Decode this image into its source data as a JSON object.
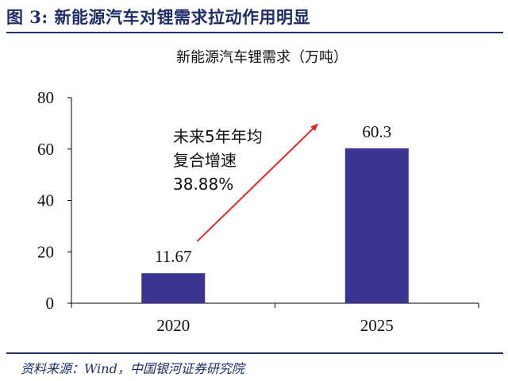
{
  "figure": {
    "title": "图 3:  新能源汽车对锂需求拉动作用明显",
    "source": "资料来源：Wind，中国银河证券研究院"
  },
  "chart_data": {
    "type": "bar",
    "title": "新能源汽车锂需求（万吨）",
    "categories": [
      "2020",
      "2025"
    ],
    "values": [
      11.67,
      60.3
    ],
    "value_labels": [
      "11.67",
      "60.3"
    ],
    "ylim": [
      0,
      80
    ],
    "yticks": [
      0,
      20,
      40,
      60,
      80
    ],
    "ytick_labels": [
      "0",
      "20",
      "40",
      "60",
      "80"
    ],
    "xlabel": "",
    "ylabel": "",
    "grid": false,
    "bar_color": "#3b3591",
    "annotation": {
      "lines": [
        "未来5年年均",
        "复合增速",
        "38.88%"
      ],
      "arrow_color": "#e8262a"
    }
  }
}
